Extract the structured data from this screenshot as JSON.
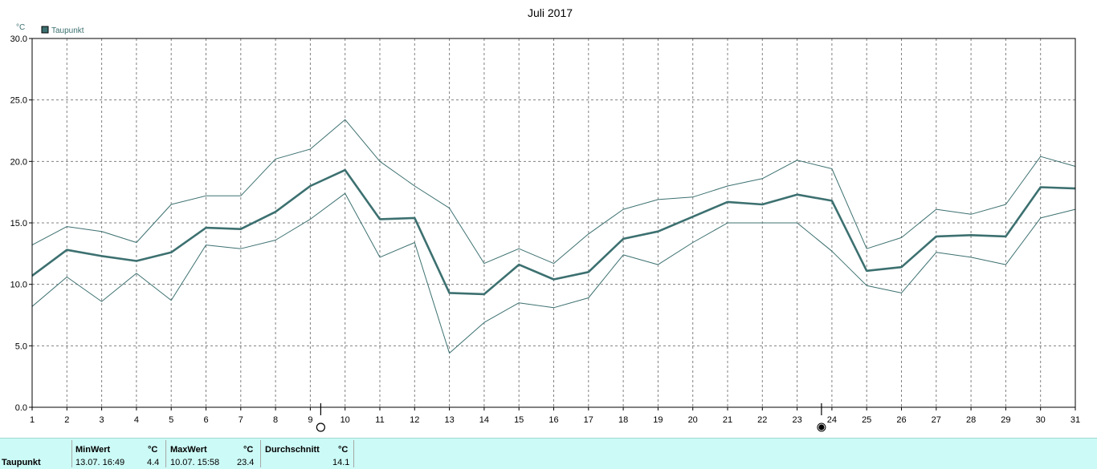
{
  "chart_data": {
    "type": "line",
    "title": "Juli 2017",
    "ylabel": "°C",
    "ylim": [
      0,
      30
    ],
    "yticks": [
      "0.0",
      "5.0",
      "10.0",
      "15.0",
      "20.0",
      "25.0",
      "30.0"
    ],
    "x": [
      1,
      2,
      3,
      4,
      5,
      6,
      7,
      8,
      9,
      10,
      11,
      12,
      13,
      14,
      15,
      16,
      17,
      18,
      19,
      20,
      21,
      22,
      23,
      24,
      25,
      26,
      27,
      28,
      29,
      30,
      31
    ],
    "legend": "Taupunkt",
    "grid": true,
    "colors": {
      "series": "#3d7070",
      "grid": "#808080",
      "axis": "#000000"
    },
    "series": [
      {
        "role": "max",
        "values": [
          13.2,
          14.7,
          14.3,
          13.4,
          16.5,
          17.2,
          17.2,
          20.2,
          21.0,
          23.4,
          20.0,
          18.0,
          16.2,
          11.7,
          12.9,
          11.7,
          14.1,
          16.1,
          16.9,
          17.1,
          18.0,
          18.6,
          20.1,
          19.4,
          12.9,
          13.8,
          16.1,
          15.7,
          16.5,
          20.4,
          19.6
        ]
      },
      {
        "role": "mean",
        "values": [
          10.7,
          12.8,
          12.3,
          11.9,
          12.6,
          14.6,
          14.5,
          15.9,
          18.0,
          19.3,
          15.3,
          15.4,
          9.3,
          9.2,
          11.6,
          10.4,
          11.0,
          13.7,
          14.3,
          15.5,
          16.7,
          16.5,
          17.3,
          16.8,
          11.1,
          11.4,
          13.9,
          14.0,
          13.9,
          17.9,
          17.8
        ]
      },
      {
        "role": "min",
        "values": [
          8.2,
          10.6,
          8.6,
          10.9,
          8.7,
          13.2,
          12.9,
          13.6,
          15.3,
          17.4,
          12.2,
          13.4,
          4.4,
          6.9,
          8.5,
          8.1,
          8.9,
          12.4,
          11.6,
          13.4,
          15.0,
          15.0,
          15.0,
          12.7,
          9.9,
          9.3,
          12.6,
          12.2,
          11.6,
          15.4,
          16.1
        ]
      }
    ],
    "moon_markers": [
      {
        "x": 9.3,
        "phase": "full-moon"
      },
      {
        "x": 23.7,
        "phase": "new-moon"
      }
    ]
  },
  "footer": {
    "row_label": "Taupunkt",
    "min_header": "MinWert",
    "min_unit": "°C",
    "min_time": "13.07.  16:49",
    "min_value": "4.4",
    "max_header": "MaxWert",
    "max_unit": "°C",
    "max_time": "10.07.  15:58",
    "max_value": "23.4",
    "avg_header": "Durchschnitt",
    "avg_unit": "°C",
    "avg_value": "14.1"
  }
}
